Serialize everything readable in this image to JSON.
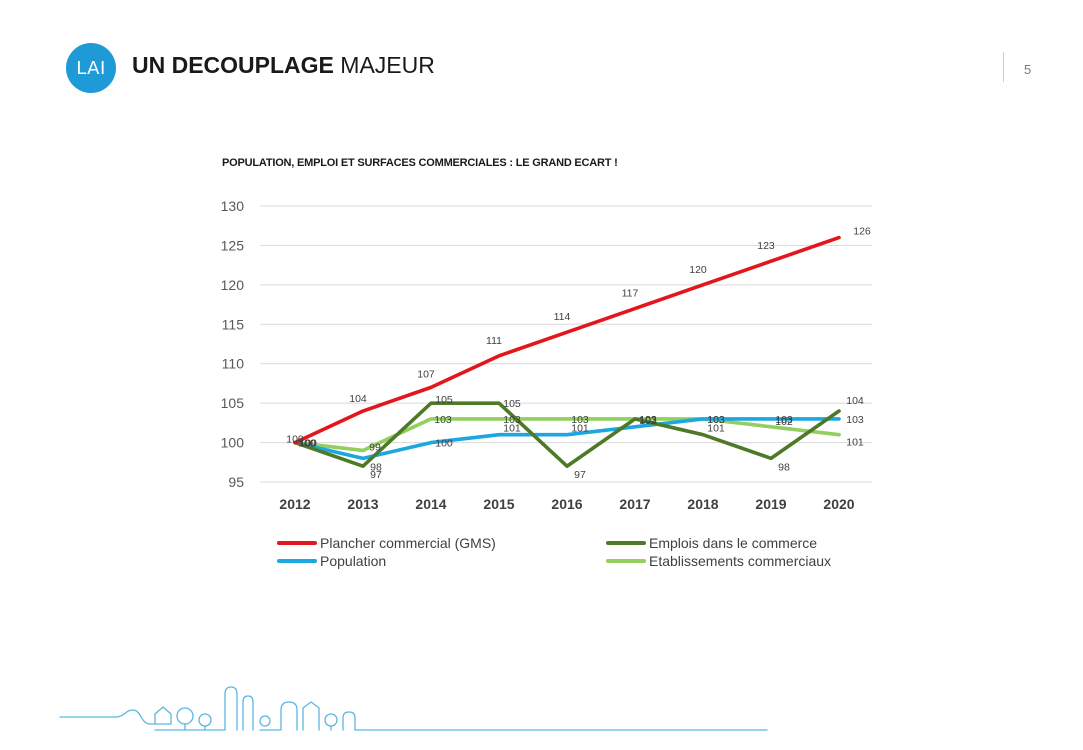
{
  "header": {
    "logo_text": "LAI",
    "title_bold": "UN DECOUPLAGE",
    "title_light": "MAJEUR",
    "page_number": "5",
    "logo_color": "#1e9bd7"
  },
  "chart_data": {
    "type": "line",
    "title": "POPULATION, EMPLOI ET SURFACES COMMERCIALES : LE GRAND ECART !",
    "xlabel": "",
    "ylabel": "",
    "ylim": [
      95,
      130
    ],
    "yticks": [
      95,
      100,
      105,
      110,
      115,
      120,
      125,
      130
    ],
    "grid": true,
    "legend_position": "bottom",
    "categories": [
      "2012",
      "2013",
      "2014",
      "2015",
      "2016",
      "2017",
      "2018",
      "2019",
      "2020"
    ],
    "series": [
      {
        "name": "Plancher commercial (GMS)",
        "color": "#e2161c",
        "values": [
          100,
          104,
          107,
          111,
          114,
          117,
          120,
          123,
          126
        ],
        "labels": [
          "100",
          "104",
          "107",
          "111",
          "114",
          "117",
          "120",
          "123",
          "126"
        ]
      },
      {
        "name": "Emplois dans le commerce",
        "color": "#4e7a27",
        "values": [
          100,
          97,
          105,
          105,
          97,
          103,
          101,
          98,
          104
        ],
        "labels": [
          "100",
          "97",
          "105",
          "105",
          "97",
          "103",
          "101",
          "98",
          "104"
        ]
      },
      {
        "name": "Population",
        "color": "#1ba7e0",
        "values": [
          100,
          98,
          100,
          101,
          101,
          102,
          103,
          103,
          103
        ],
        "labels": [
          "100",
          "98",
          "100",
          "101",
          "101",
          "102",
          "103",
          "103",
          "103"
        ]
      },
      {
        "name": "Etablissements commerciaux",
        "color": "#93cf5e",
        "values": [
          100,
          99,
          103,
          103,
          103,
          103,
          103,
          102,
          101
        ],
        "labels": [
          "100",
          "99",
          "103",
          "103",
          "103",
          "103",
          "103",
          "102",
          "101"
        ]
      }
    ]
  }
}
